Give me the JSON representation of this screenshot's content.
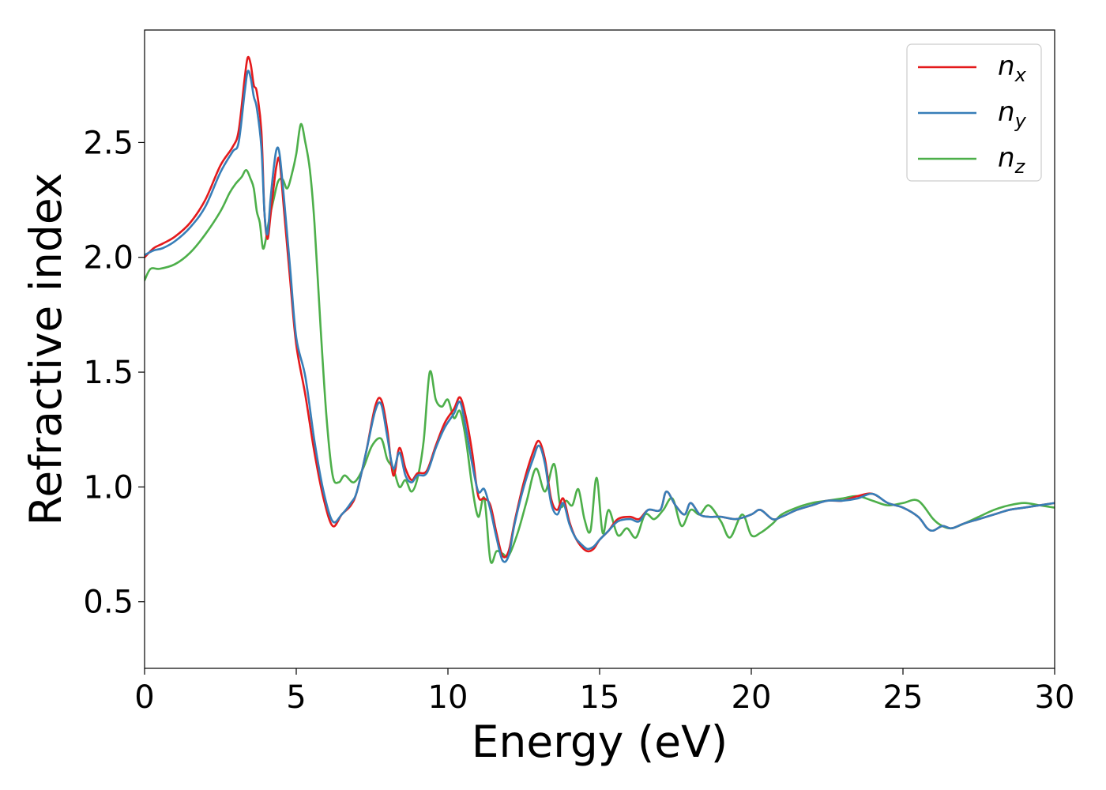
{
  "chart_data": {
    "type": "line",
    "title": "",
    "xlabel": "Energy (eV)",
    "ylabel": "Refractive index",
    "xlim": [
      0,
      30
    ],
    "ylim": [
      0.21,
      2.99
    ],
    "xticks": [
      0,
      5,
      10,
      15,
      20,
      25,
      30
    ],
    "xtick_labels": [
      "0",
      "5",
      "10",
      "15",
      "20",
      "25",
      "30"
    ],
    "yticks": [
      0.5,
      1.0,
      1.5,
      2.0,
      2.5
    ],
    "ytick_labels": [
      "0.5",
      "1.0",
      "1.5",
      "2.0",
      "2.5"
    ],
    "grid": false,
    "legend_position": "top-right",
    "series": [
      {
        "name": "n",
        "subscript": "x",
        "color": "#e41a1c",
        "x": [
          0,
          0.3,
          0.6,
          1.0,
          1.5,
          2.0,
          2.5,
          2.9,
          3.1,
          3.3,
          3.4,
          3.5,
          3.6,
          3.7,
          3.85,
          3.95,
          4.05,
          4.15,
          4.25,
          4.35,
          4.45,
          4.6,
          4.8,
          5.0,
          5.3,
          5.6,
          5.9,
          6.2,
          6.5,
          6.8,
          7.0,
          7.3,
          7.6,
          7.8,
          8.0,
          8.2,
          8.4,
          8.6,
          8.8,
          9.0,
          9.3,
          9.6,
          9.9,
          10.2,
          10.4,
          10.6,
          10.8,
          11.0,
          11.2,
          11.4,
          11.6,
          11.8,
          12.0,
          12.2,
          12.5,
          12.8,
          13.0,
          13.2,
          13.4,
          13.6,
          13.8,
          14.0,
          14.2,
          14.4,
          14.6,
          14.8,
          15.0,
          15.3,
          15.6,
          16.0,
          16.3,
          16.6,
          17.0,
          17.2,
          17.5,
          17.8,
          18.0,
          18.3,
          18.6,
          19.0,
          19.5,
          20.0,
          20.3,
          20.7,
          21.0,
          21.5,
          22.0,
          22.5,
          23.0,
          23.5,
          24.0,
          24.5,
          25.0,
          25.5,
          25.8,
          26.0,
          26.3,
          26.6,
          27.0,
          27.5,
          28.0,
          28.5,
          29.0,
          29.5,
          30.0
        ],
        "y": [
          2.0,
          2.04,
          2.06,
          2.09,
          2.15,
          2.25,
          2.4,
          2.48,
          2.55,
          2.78,
          2.87,
          2.84,
          2.75,
          2.72,
          2.55,
          2.2,
          2.08,
          2.18,
          2.3,
          2.4,
          2.42,
          2.2,
          1.9,
          1.62,
          1.4,
          1.15,
          0.95,
          0.83,
          0.88,
          0.92,
          0.98,
          1.15,
          1.35,
          1.38,
          1.25,
          1.05,
          1.17,
          1.08,
          1.03,
          1.06,
          1.07,
          1.18,
          1.28,
          1.34,
          1.39,
          1.3,
          1.15,
          0.96,
          0.95,
          0.92,
          0.8,
          0.7,
          0.72,
          0.85,
          1.02,
          1.15,
          1.2,
          1.12,
          0.95,
          0.9,
          0.95,
          0.85,
          0.78,
          0.74,
          0.72,
          0.73,
          0.77,
          0.81,
          0.86,
          0.87,
          0.86,
          0.9,
          0.9,
          0.98,
          0.92,
          0.88,
          0.93,
          0.88,
          0.87,
          0.87,
          0.86,
          0.88,
          0.9,
          0.86,
          0.87,
          0.9,
          0.92,
          0.94,
          0.94,
          0.96,
          0.97,
          0.93,
          0.91,
          0.87,
          0.82,
          0.81,
          0.83,
          0.82,
          0.84,
          0.86,
          0.88,
          0.9,
          0.91,
          0.92,
          0.93
        ]
      },
      {
        "name": "n",
        "subscript": "y",
        "color": "#377eb8",
        "x": [
          0,
          0.3,
          0.6,
          1.0,
          1.5,
          2.0,
          2.5,
          2.9,
          3.1,
          3.3,
          3.4,
          3.5,
          3.6,
          3.7,
          3.85,
          3.95,
          4.05,
          4.15,
          4.25,
          4.35,
          4.45,
          4.6,
          4.8,
          5.0,
          5.3,
          5.6,
          5.9,
          6.2,
          6.5,
          6.8,
          7.0,
          7.3,
          7.6,
          7.8,
          8.0,
          8.2,
          8.4,
          8.6,
          8.8,
          9.0,
          9.3,
          9.6,
          9.9,
          10.2,
          10.4,
          10.6,
          10.8,
          11.0,
          11.2,
          11.4,
          11.6,
          11.8,
          12.0,
          12.2,
          12.5,
          12.8,
          13.0,
          13.2,
          13.4,
          13.6,
          13.8,
          14.0,
          14.2,
          14.4,
          14.6,
          14.8,
          15.0,
          15.3,
          15.6,
          16.0,
          16.3,
          16.6,
          17.0,
          17.2,
          17.5,
          17.8,
          18.0,
          18.3,
          18.6,
          19.0,
          19.5,
          20.0,
          20.3,
          20.7,
          21.0,
          21.5,
          22.0,
          22.5,
          23.0,
          23.5,
          24.0,
          24.5,
          25.0,
          25.5,
          25.8,
          26.0,
          26.3,
          26.6,
          27.0,
          27.5,
          28.0,
          28.5,
          29.0,
          29.5,
          30.0
        ],
        "y": [
          2.01,
          2.03,
          2.04,
          2.07,
          2.13,
          2.22,
          2.37,
          2.46,
          2.5,
          2.72,
          2.81,
          2.78,
          2.7,
          2.65,
          2.48,
          2.2,
          2.1,
          2.25,
          2.38,
          2.47,
          2.45,
          2.25,
          1.95,
          1.65,
          1.48,
          1.2,
          0.98,
          0.85,
          0.88,
          0.93,
          0.98,
          1.15,
          1.33,
          1.36,
          1.22,
          1.08,
          1.15,
          1.05,
          1.02,
          1.05,
          1.06,
          1.17,
          1.26,
          1.32,
          1.37,
          1.25,
          1.1,
          0.98,
          0.99,
          0.9,
          0.78,
          0.68,
          0.7,
          0.84,
          1.0,
          1.12,
          1.18,
          1.1,
          0.93,
          0.88,
          0.93,
          0.84,
          0.78,
          0.75,
          0.73,
          0.74,
          0.77,
          0.81,
          0.85,
          0.86,
          0.85,
          0.9,
          0.9,
          0.98,
          0.92,
          0.88,
          0.93,
          0.88,
          0.87,
          0.87,
          0.86,
          0.88,
          0.9,
          0.86,
          0.87,
          0.9,
          0.92,
          0.94,
          0.94,
          0.95,
          0.97,
          0.93,
          0.91,
          0.87,
          0.82,
          0.81,
          0.83,
          0.82,
          0.84,
          0.86,
          0.88,
          0.9,
          0.91,
          0.92,
          0.93
        ]
      },
      {
        "name": "n",
        "subscript": "z",
        "color": "#4daf4a",
        "x": [
          0,
          0.2,
          0.5,
          1.0,
          1.5,
          2.0,
          2.5,
          2.8,
          3.0,
          3.2,
          3.35,
          3.5,
          3.6,
          3.7,
          3.8,
          3.9,
          4.0,
          4.1,
          4.25,
          4.4,
          4.55,
          4.7,
          4.85,
          5.0,
          5.15,
          5.3,
          5.45,
          5.6,
          5.8,
          6.0,
          6.2,
          6.4,
          6.6,
          6.9,
          7.2,
          7.5,
          7.8,
          8.0,
          8.2,
          8.4,
          8.6,
          8.8,
          9.0,
          9.2,
          9.4,
          9.6,
          9.8,
          10.0,
          10.2,
          10.4,
          10.6,
          10.8,
          11.0,
          11.2,
          11.4,
          11.6,
          11.8,
          12.0,
          12.3,
          12.6,
          12.9,
          13.2,
          13.5,
          13.7,
          13.9,
          14.1,
          14.3,
          14.5,
          14.7,
          14.9,
          15.1,
          15.3,
          15.6,
          15.9,
          16.2,
          16.5,
          16.8,
          17.1,
          17.4,
          17.7,
          18.0,
          18.3,
          18.6,
          19.0,
          19.3,
          19.7,
          20.0,
          20.3,
          20.7,
          21.0,
          21.5,
          22.0,
          22.5,
          23.0,
          23.5,
          24.0,
          24.5,
          25.0,
          25.5,
          26.0,
          26.3,
          26.6,
          27.0,
          27.5,
          28.0,
          28.5,
          29.0,
          29.5,
          30.0
        ],
        "y": [
          1.9,
          1.95,
          1.95,
          1.97,
          2.02,
          2.1,
          2.2,
          2.28,
          2.32,
          2.35,
          2.38,
          2.34,
          2.3,
          2.2,
          2.15,
          2.04,
          2.08,
          2.16,
          2.25,
          2.33,
          2.34,
          2.3,
          2.36,
          2.45,
          2.58,
          2.5,
          2.38,
          2.15,
          1.7,
          1.3,
          1.05,
          1.02,
          1.05,
          1.02,
          1.08,
          1.18,
          1.21,
          1.12,
          1.08,
          1.0,
          1.03,
          0.98,
          1.04,
          1.2,
          1.5,
          1.38,
          1.35,
          1.38,
          1.3,
          1.33,
          1.2,
          1.0,
          0.87,
          0.95,
          0.68,
          0.72,
          0.71,
          0.7,
          0.8,
          0.94,
          1.08,
          0.98,
          1.1,
          0.92,
          0.94,
          0.92,
          0.99,
          0.86,
          0.81,
          1.04,
          0.8,
          0.9,
          0.79,
          0.82,
          0.78,
          0.88,
          0.86,
          0.9,
          0.95,
          0.83,
          0.9,
          0.88,
          0.92,
          0.85,
          0.78,
          0.88,
          0.79,
          0.8,
          0.84,
          0.88,
          0.91,
          0.93,
          0.94,
          0.95,
          0.96,
          0.94,
          0.92,
          0.93,
          0.94,
          0.86,
          0.83,
          0.82,
          0.84,
          0.87,
          0.9,
          0.92,
          0.93,
          0.92,
          0.91
        ]
      }
    ]
  }
}
